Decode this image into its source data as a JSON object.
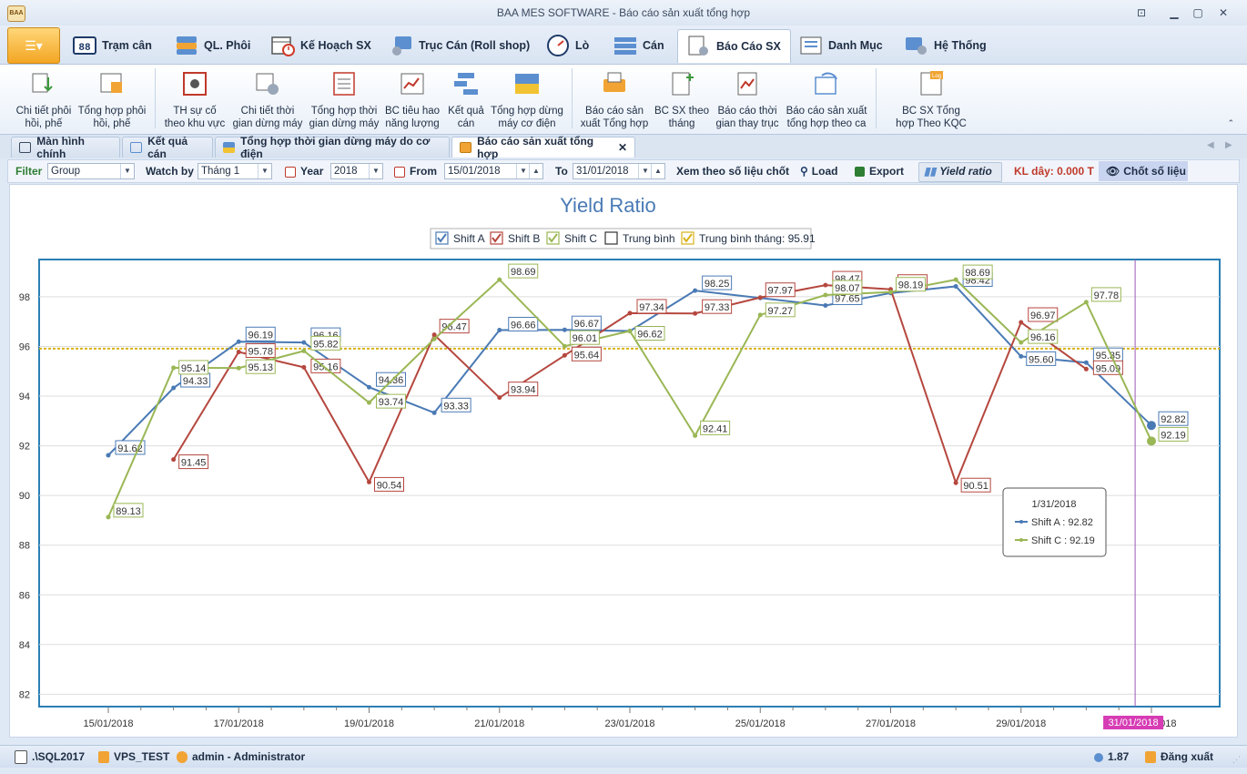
{
  "window": {
    "title": "BAA MES SOFTWARE - Báo cáo sản xuất tổng hợp",
    "logo_text": "BAA MES"
  },
  "main_tabs": [
    {
      "label": "Trạm cân",
      "icon": "scale-icon"
    },
    {
      "label": "QL. Phôi",
      "icon": "billet-icon"
    },
    {
      "label": "Kế Hoạch SX",
      "icon": "calendar-icon"
    },
    {
      "label": "Trục Cán (Roll shop)",
      "icon": "roll-shop-icon"
    },
    {
      "label": "Lò",
      "icon": "furnace-gauge-icon"
    },
    {
      "label": "Cán",
      "icon": "rolling-grid-icon"
    },
    {
      "label": "Báo Cáo SX",
      "icon": "report-gear-icon"
    },
    {
      "label": "Danh Mục",
      "icon": "catalog-icon"
    },
    {
      "label": "Hệ Thống",
      "icon": "system-icon"
    }
  ],
  "ribbon": [
    {
      "line1": "Chi tiết phôi",
      "line2": "hồi, phế"
    },
    {
      "line1": "Tổng hợp phôi",
      "line2": "hồi, phế"
    },
    {
      "line1": "TH sự cố",
      "line2": "theo khu vực"
    },
    {
      "line1": "Chi tiết thời",
      "line2": "gian dừng máy"
    },
    {
      "line1": "Tổng hợp thời",
      "line2": "gian dừng máy"
    },
    {
      "line1": "BC tiêu hao",
      "line2": "năng lượng"
    },
    {
      "line1": "Kết quả",
      "line2": "cán"
    },
    {
      "line1": "Tổng hợp dừng",
      "line2": "máy cơ điện"
    },
    {
      "line1": "Báo cáo sản",
      "line2": "xuất Tổng hợp"
    },
    {
      "line1": "BC SX theo",
      "line2": "tháng"
    },
    {
      "line1": "Báo cáo thời",
      "line2": "gian thay trục"
    },
    {
      "line1": "Báo cáo sản xuất",
      "line2": "tổng hợp theo ca"
    },
    {
      "line1": "BC SX Tổng",
      "line2": "hợp Theo KQC"
    }
  ],
  "doc_tabs": [
    "Màn hình chính",
    "Kết quả cán",
    "Tổng hợp thời gian dừng máy do cơ điện",
    "Báo cáo sản xuất tổng hợp"
  ],
  "filter": {
    "filter_label": "Filter",
    "filter_value": "Group",
    "watch_label": "Watch by",
    "watch_value": "Tháng 1",
    "year_label": "Year",
    "year_value": "2018",
    "from_label": "From",
    "from_value": "15/01/2018",
    "to_label": "To",
    "to_value": "31/01/2018",
    "xem_label": "Xem theo số liệu chốt",
    "load_label": "Load",
    "export_label": "Export",
    "yield_label": "Yield ratio",
    "kl_label": "KL dây: 0.000 T",
    "chot_label": "Chốt số liệu"
  },
  "status": {
    "server": ".\\SQL2017",
    "database": "VPS_TEST",
    "user": "admin - Administrator",
    "version": "1.87",
    "logout": "Đăng xuất"
  },
  "chart_data": {
    "type": "line",
    "title": "Yield Ratio",
    "x": [
      "15/01/2018",
      "16/01/2018",
      "17/01/2018",
      "18/01/2018",
      "19/01/2018",
      "20/01/2018",
      "21/01/2018",
      "22/01/2018",
      "23/01/2018",
      "24/01/2018",
      "25/01/2018",
      "26/01/2018",
      "27/01/2018",
      "28/01/2018",
      "29/01/2018",
      "30/01/2018",
      "31/01/2018"
    ],
    "tick_labels": [
      "15/01/2018",
      "17/01/2018",
      "19/01/2018",
      "21/01/2018",
      "23/01/2018",
      "25/01/2018",
      "27/01/2018",
      "29/01/2018",
      "31/01/2018"
    ],
    "ylim": [
      81.5,
      99.5
    ],
    "yticks": [
      82,
      84,
      86,
      88,
      90,
      92,
      94,
      96,
      98
    ],
    "legend": [
      {
        "label": "Shift A",
        "checked": true,
        "color": "#4a7ab5"
      },
      {
        "label": "Shift B",
        "checked": true,
        "color": "#b5473e"
      },
      {
        "label": "Shift C",
        "checked": true,
        "color": "#9ab755"
      },
      {
        "label": "Trung bình",
        "checked": false,
        "color": "#333333"
      },
      {
        "label": "Trung bình tháng: 95.91",
        "checked": true,
        "color": "#d8b218"
      }
    ],
    "series": [
      {
        "name": "Shift A",
        "color": "#4a7ab5",
        "values": [
          91.62,
          94.33,
          96.19,
          96.16,
          94.36,
          93.33,
          96.66,
          96.67,
          96.62,
          98.25,
          97.95,
          97.65,
          98.15,
          98.42,
          95.6,
          95.35,
          92.82
        ]
      },
      {
        "name": "Shift B",
        "color": "#b5473e",
        "values": [
          null,
          91.45,
          95.78,
          95.16,
          90.54,
          96.47,
          93.94,
          95.64,
          97.34,
          97.33,
          97.97,
          98.47,
          98.3,
          90.51,
          96.97,
          95.09,
          null
        ]
      },
      {
        "name": "Shift C",
        "color": "#9ab755",
        "values": [
          89.13,
          95.14,
          95.13,
          95.82,
          93.74,
          96.3,
          98.69,
          96.01,
          96.62,
          92.41,
          97.27,
          98.07,
          98.19,
          98.69,
          96.16,
          97.78,
          92.19
        ]
      }
    ],
    "average_line": {
      "value": 95.91,
      "color": "#d8b218"
    },
    "cursor": {
      "x_label": "31/01/2018",
      "date": "1/31/2018"
    },
    "tooltip": {
      "title": "1/31/2018",
      "lines": [
        "Shift A : 92.82",
        "Shift C : 92.19"
      ]
    }
  }
}
